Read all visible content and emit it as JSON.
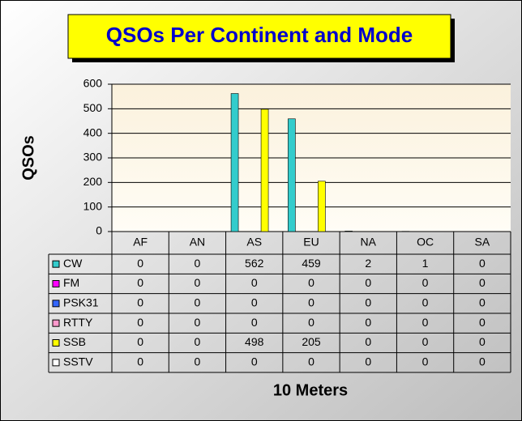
{
  "chart_data": {
    "type": "bar",
    "title": "QSOs Per Continent and Mode",
    "y_label": "QSOs",
    "x_label": "10 Meters",
    "categories": [
      "AF",
      "AN",
      "AS",
      "EU",
      "NA",
      "OC",
      "SA"
    ],
    "series": [
      {
        "name": "CW",
        "color": "#33cccc",
        "values": [
          0,
          0,
          562,
          459,
          2,
          1,
          0
        ]
      },
      {
        "name": "FM",
        "color": "#ff00ff",
        "values": [
          0,
          0,
          0,
          0,
          0,
          0,
          0
        ]
      },
      {
        "name": "PSK31",
        "color": "#3366ff",
        "values": [
          0,
          0,
          0,
          0,
          0,
          0,
          0
        ]
      },
      {
        "name": "RTTY",
        "color": "#ff99cc",
        "values": [
          0,
          0,
          0,
          0,
          0,
          0,
          0
        ]
      },
      {
        "name": "SSB",
        "color": "#ffff00",
        "values": [
          0,
          0,
          498,
          205,
          0,
          0,
          0
        ]
      },
      {
        "name": "SSTV",
        "color": "#ffffff",
        "values": [
          0,
          0,
          0,
          0,
          0,
          0,
          0
        ]
      }
    ],
    "ylim": [
      0,
      600
    ],
    "yticks": [
      0,
      100,
      200,
      300,
      400,
      500,
      600
    ],
    "grid": true
  }
}
